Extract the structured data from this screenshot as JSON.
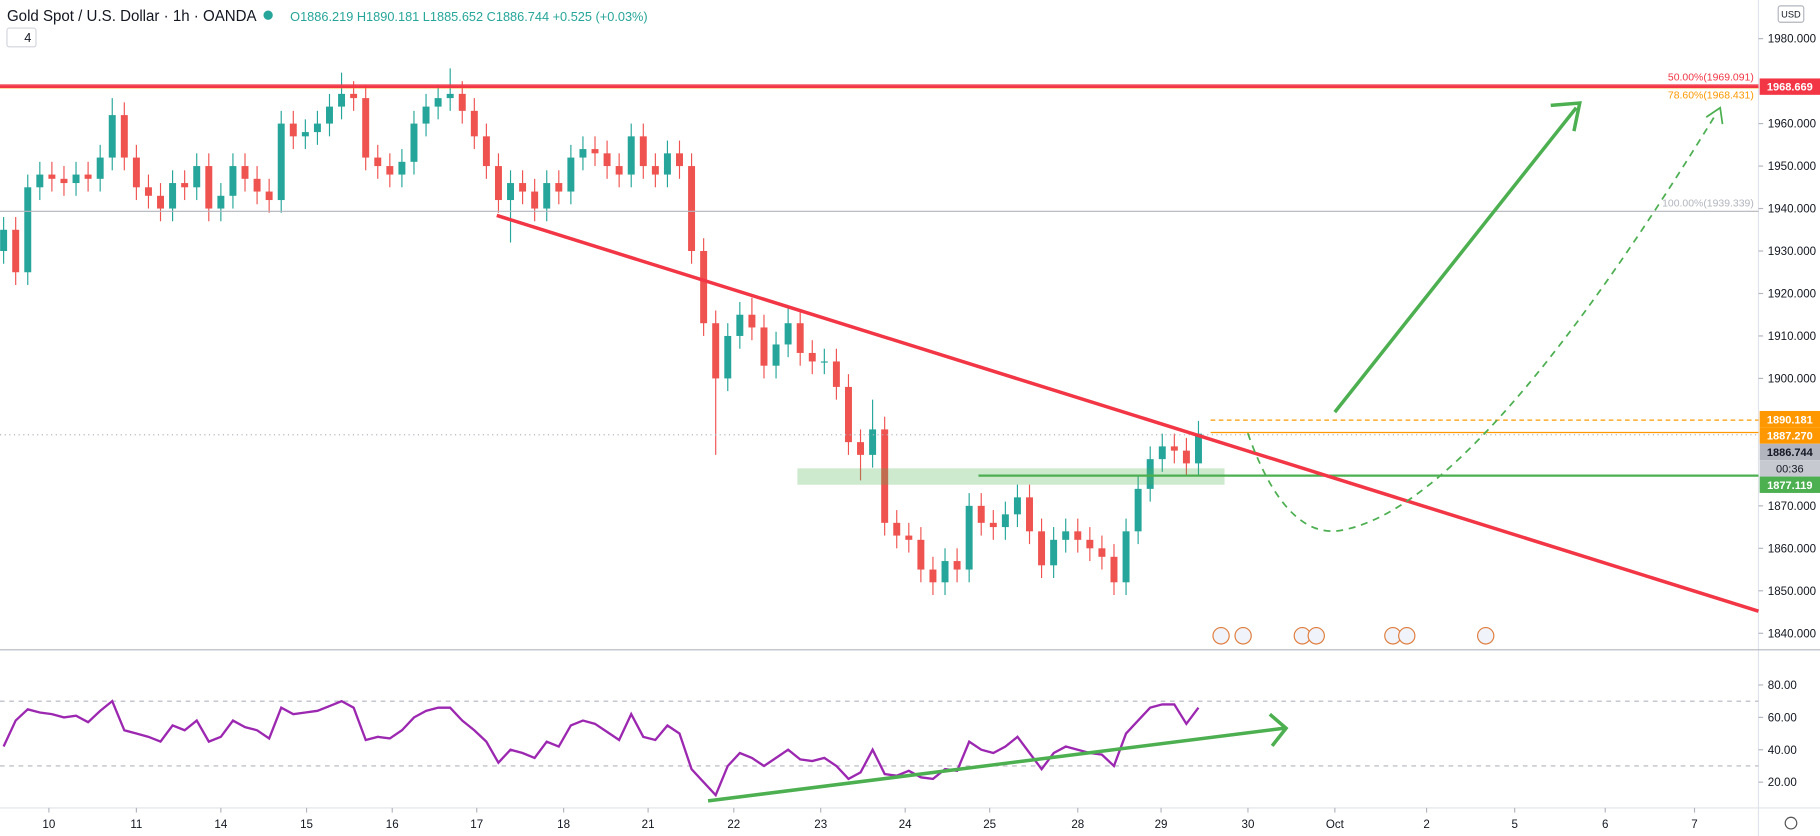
{
  "header": {
    "title": "Gold Spot / U.S. Dollar · 1h · OANDA",
    "ohlc": "O1886.219 H1890.181 L1885.652 C1886.744 +0.525 (+0.03%)",
    "badge": "4",
    "currency": "USD"
  },
  "chart_data": {
    "type": "candlestick",
    "open": [
      1930,
      1935,
      1925,
      1945,
      1948,
      1947,
      1946,
      1948,
      1947,
      1952,
      1962,
      1952,
      1945,
      1943,
      1940,
      1946,
      1945,
      1950,
      1940,
      1943,
      1950,
      1947,
      1944,
      1942,
      1960,
      1957,
      1958,
      1960,
      1964,
      1967,
      1966,
      1952,
      1950,
      1948,
      1951,
      1960,
      1964,
      1966,
      1967,
      1963,
      1957,
      1950,
      1942,
      1946,
      1944,
      1940,
      1946,
      1944,
      1952,
      1954,
      1953,
      1950,
      1948,
      1957,
      1950,
      1948,
      1953,
      1950,
      1930,
      1913,
      1900,
      1910,
      1915,
      1912,
      1903,
      1908,
      1913,
      1906,
      1904,
      1904,
      1898,
      1885,
      1882,
      1888,
      1866,
      1863,
      1862,
      1855,
      1852,
      1857,
      1855,
      1870,
      1866,
      1865,
      1868,
      1872,
      1864,
      1856,
      1862,
      1864,
      1862,
      1860,
      1858,
      1852,
      1864,
      1874,
      1881,
      1884,
      1883,
      1880
    ],
    "high": [
      1938,
      1938,
      1948,
      1951,
      1951,
      1950,
      1951,
      1951,
      1955,
      1966,
      1965,
      1955,
      1948,
      1946,
      1949,
      1949,
      1953,
      1953,
      1946,
      1953,
      1953,
      1950,
      1947,
      1963,
      1963,
      1961,
      1963,
      1967,
      1972,
      1970,
      1969,
      1955,
      1953,
      1954,
      1963,
      1967,
      1969,
      1973,
      1970,
      1966,
      1960,
      1953,
      1949,
      1949,
      1947,
      1949,
      1949,
      1955,
      1957,
      1957,
      1956,
      1953,
      1960,
      1960,
      1953,
      1956,
      1956,
      1953,
      1933,
      1916,
      1913,
      1918,
      1919,
      1915,
      1911,
      1917,
      1916,
      1909,
      1907,
      1907,
      1901,
      1888,
      1895,
      1891,
      1869,
      1866,
      1865,
      1858,
      1860,
      1860,
      1873,
      1873,
      1869,
      1871,
      1875,
      1875,
      1867,
      1865,
      1867,
      1867,
      1865,
      1863,
      1861,
      1867,
      1877,
      1884,
      1887,
      1887,
      1886,
      1890
    ],
    "low": [
      1927,
      1922,
      1922,
      1942,
      1944,
      1943,
      1943,
      1944,
      1944,
      1949,
      1949,
      1942,
      1940,
      1937,
      1937,
      1942,
      1942,
      1937,
      1937,
      1940,
      1944,
      1941,
      1939,
      1939,
      1954,
      1954,
      1955,
      1957,
      1961,
      1963,
      1949,
      1947,
      1945,
      1945,
      1948,
      1957,
      1961,
      1963,
      1960,
      1954,
      1947,
      1939,
      1932,
      1941,
      1937,
      1937,
      1941,
      1941,
      1949,
      1950,
      1947,
      1945,
      1945,
      1947,
      1945,
      1945,
      1947,
      1927,
      1910,
      1882,
      1897,
      1907,
      1909,
      1900,
      1900,
      1905,
      1903,
      1901,
      1901,
      1895,
      1882,
      1876,
      1879,
      1863,
      1860,
      1859,
      1852,
      1849,
      1849,
      1852,
      1852,
      1863,
      1862,
      1862,
      1865,
      1861,
      1853,
      1853,
      1859,
      1859,
      1857,
      1855,
      1849,
      1849,
      1861,
      1871,
      1878,
      1880,
      1877,
      1877
    ],
    "close": [
      1935,
      1925,
      1945,
      1948,
      1947,
      1946,
      1948,
      1947,
      1952,
      1962,
      1952,
      1945,
      1943,
      1940,
      1946,
      1945,
      1950,
      1940,
      1943,
      1950,
      1947,
      1944,
      1942,
      1960,
      1957,
      1958,
      1960,
      1964,
      1967,
      1966,
      1952,
      1950,
      1948,
      1951,
      1960,
      1964,
      1966,
      1967,
      1963,
      1957,
      1950,
      1942,
      1946,
      1944,
      1940,
      1946,
      1944,
      1952,
      1954,
      1953,
      1950,
      1948,
      1957,
      1950,
      1948,
      1953,
      1950,
      1930,
      1913,
      1900,
      1910,
      1915,
      1912,
      1903,
      1908,
      1913,
      1906,
      1904,
      1904,
      1898,
      1885,
      1882,
      1888,
      1866,
      1863,
      1862,
      1855,
      1852,
      1857,
      1855,
      1870,
      1866,
      1865,
      1868,
      1872,
      1864,
      1856,
      1862,
      1864,
      1862,
      1860,
      1858,
      1852,
      1864,
      1874,
      1881,
      1884,
      1883,
      1880,
      1887
    ],
    "up_color": "#26a69a",
    "down_color": "#ef5350",
    "xlim": [
      -0.3,
      145.4
    ],
    "ylim": [
      1836.1,
      1989.1
    ],
    "yticks": [
      {
        "value": 1840,
        "label": "1840.000"
      },
      {
        "value": 1850,
        "label": "1850.000"
      },
      {
        "value": 1860,
        "label": "1860.000"
      },
      {
        "value": 1870,
        "label": "1870.000"
      },
      {
        "value": 1900,
        "label": "1900.000"
      },
      {
        "value": 1910,
        "label": "1910.000"
      },
      {
        "value": 1920,
        "label": "1920.000"
      },
      {
        "value": 1930,
        "label": "1930.000"
      },
      {
        "value": 1940,
        "label": "1940.000"
      },
      {
        "value": 1950,
        "label": "1950.000"
      },
      {
        "value": 1960,
        "label": "1960.000"
      },
      {
        "value": 1980,
        "label": "1980.000"
      }
    ],
    "xticks": [
      {
        "value": 3.75,
        "label": "10"
      },
      {
        "value": 11,
        "label": "11"
      },
      {
        "value": 18,
        "label": "14"
      },
      {
        "value": 25.1,
        "label": "15"
      },
      {
        "value": 32.2,
        "label": "16"
      },
      {
        "value": 39.2,
        "label": "17"
      },
      {
        "value": 46.4,
        "label": "18"
      },
      {
        "value": 53.4,
        "label": "21"
      },
      {
        "value": 60.5,
        "label": "22"
      },
      {
        "value": 67.7,
        "label": "23"
      },
      {
        "value": 74.7,
        "label": "24"
      },
      {
        "value": 81.7,
        "label": "25"
      },
      {
        "value": 89,
        "label": "28"
      },
      {
        "value": 95.9,
        "label": "29"
      },
      {
        "value": 103.1,
        "label": "30"
      },
      {
        "value": 110.3,
        "label": "Oct"
      },
      {
        "value": 117.9,
        "label": "2"
      },
      {
        "value": 125.2,
        "label": "5"
      },
      {
        "value": 132.7,
        "label": "6"
      },
      {
        "value": 140.1,
        "label": "7"
      }
    ],
    "fib_levels": [
      {
        "value": 1969.091,
        "label": "50.00%(1969.091)",
        "color": "#f23645"
      },
      {
        "value": 1968.431,
        "label": "78.60%(1968.431)",
        "color": "#ff9800"
      },
      {
        "value": 1939.339,
        "label": "100.00%(1939.339)",
        "color": "#b2b5be"
      }
    ],
    "price_labels": [
      {
        "value": 1968.669,
        "label": "1968.669",
        "color": "#f23645",
        "line": "solid"
      },
      {
        "value": 1890.181,
        "label": "1890.181",
        "color": "#ff9800",
        "line": "dashed"
      },
      {
        "value": 1887.27,
        "label": "1887.270",
        "color": "#ff9800",
        "line": "solid"
      },
      {
        "value": 1886.744,
        "label": "1886.744",
        "color": "#b2b5be",
        "line": "dotted"
      },
      {
        "value": 1877.119,
        "label": "1877.119",
        "color": "#4caf50",
        "line": "solid"
      }
    ],
    "countdown": "00:36",
    "rsi": {
      "color": "#9c27b0",
      "ylim": [
        4.1,
        101.7
      ],
      "yticks": [
        {
          "value": 20,
          "label": "20.00"
        },
        {
          "value": 40,
          "label": "40.00"
        },
        {
          "value": 60,
          "label": "60.00"
        },
        {
          "value": 80,
          "label": "80.00"
        }
      ],
      "levels": [
        70,
        30
      ],
      "values": [
        42,
        58,
        65,
        63,
        62,
        60,
        61,
        57,
        64,
        70,
        52,
        50,
        48,
        45,
        55,
        52,
        58,
        45,
        48,
        58,
        54,
        52,
        47,
        66,
        62,
        63,
        64,
        67,
        70,
        66,
        46,
        48,
        47,
        52,
        60,
        64,
        66,
        66,
        58,
        52,
        45,
        32,
        40,
        38,
        35,
        45,
        42,
        55,
        58,
        56,
        51,
        46,
        62,
        48,
        46,
        55,
        50,
        28,
        20,
        12,
        30,
        38,
        35,
        30,
        35,
        40,
        34,
        33,
        35,
        30,
        22,
        26,
        40,
        25,
        24,
        27,
        23,
        22,
        28,
        27,
        45,
        40,
        38,
        42,
        48,
        38,
        28,
        38,
        42,
        40,
        38,
        37,
        30,
        50,
        58,
        66,
        68,
        68,
        56,
        66
      ]
    }
  }
}
